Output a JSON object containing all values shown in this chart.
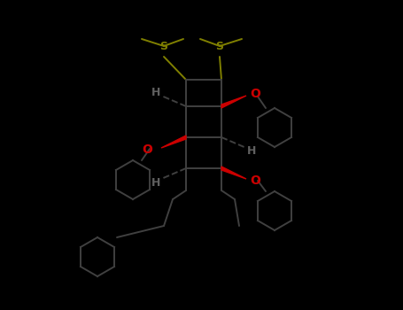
{
  "bg_color": "#000000",
  "bond_color": "#404040",
  "S_color": "#808000",
  "O_color": "#cc0000",
  "H_color": "#404040",
  "text_color": "#ffffff",
  "fig_width": 4.55,
  "fig_height": 3.5,
  "dpi": 100,
  "S_label": "S",
  "O_label": "O",
  "H_label": "H"
}
